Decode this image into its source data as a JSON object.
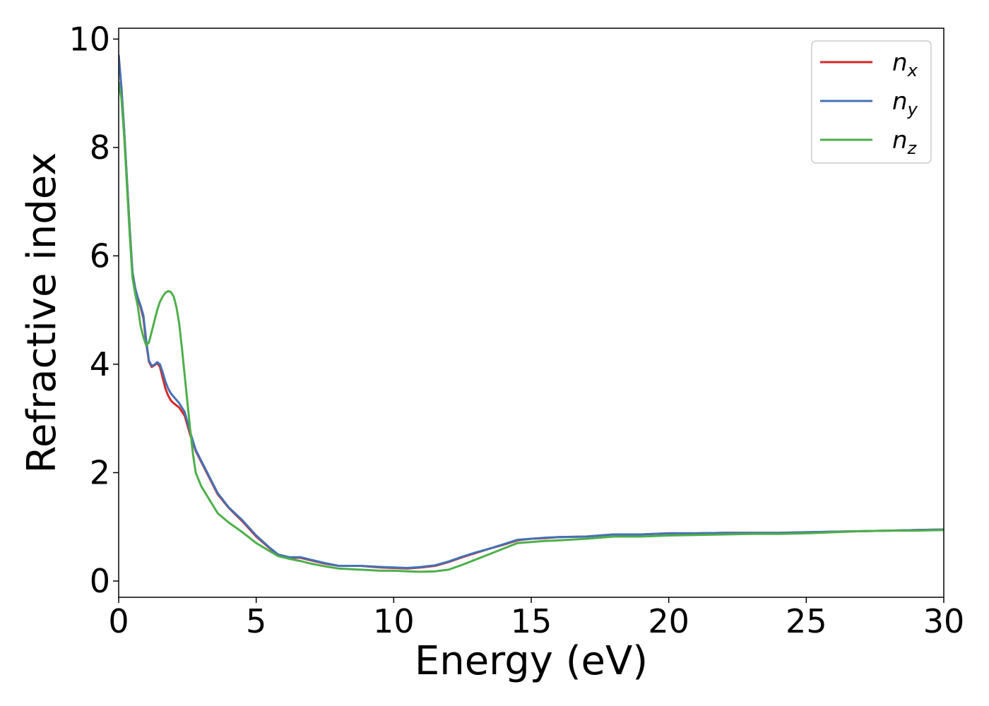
{
  "chart_data": {
    "type": "line",
    "xlabel": "Energy (eV)",
    "ylabel": "Refractive index",
    "xlim": [
      0,
      30
    ],
    "ylim": [
      -0.3,
      10.2
    ],
    "xticks": [
      0,
      5,
      10,
      15,
      20,
      25,
      30
    ],
    "yticks": [
      0,
      2,
      4,
      6,
      8,
      10
    ],
    "grid": false,
    "legend_position": "top-right",
    "series": [
      {
        "name": "n",
        "subscript": "x",
        "color": "#d62728",
        "x": [
          0,
          0.1,
          0.2,
          0.3,
          0.4,
          0.5,
          0.6,
          0.7,
          0.8,
          0.9,
          1.0,
          1.1,
          1.2,
          1.3,
          1.4,
          1.5,
          1.6,
          1.7,
          1.8,
          1.9,
          2.0,
          2.2,
          2.4,
          2.6,
          2.8,
          3.0,
          3.3,
          3.6,
          4.0,
          4.5,
          5.0,
          5.5,
          5.8,
          6.2,
          6.6,
          7.0,
          7.5,
          8.0,
          8.8,
          9.5,
          10.0,
          10.5,
          11.0,
          11.5,
          12.0,
          12.5,
          13.0,
          13.5,
          14.0,
          14.5,
          15.0,
          15.5,
          16.0,
          17.0,
          18.0,
          19.0,
          20.0,
          21.0,
          22.0,
          23.0,
          24.0,
          25.0,
          26.0,
          27.0,
          28.0,
          29.0,
          30.0
        ],
        "y": [
          9.7,
          9.1,
          8.3,
          7.4,
          6.5,
          5.7,
          5.4,
          5.2,
          5.05,
          4.85,
          4.4,
          4.05,
          3.95,
          3.98,
          4.02,
          3.95,
          3.75,
          3.55,
          3.42,
          3.33,
          3.28,
          3.2,
          3.05,
          2.7,
          2.4,
          2.2,
          1.9,
          1.6,
          1.35,
          1.1,
          0.82,
          0.6,
          0.48,
          0.43,
          0.43,
          0.38,
          0.32,
          0.28,
          0.28,
          0.25,
          0.24,
          0.23,
          0.25,
          0.28,
          0.35,
          0.44,
          0.52,
          0.6,
          0.67,
          0.75,
          0.78,
          0.79,
          0.81,
          0.82,
          0.86,
          0.86,
          0.88,
          0.88,
          0.89,
          0.89,
          0.89,
          0.9,
          0.91,
          0.92,
          0.93,
          0.94,
          0.95
        ]
      },
      {
        "name": "n",
        "subscript": "y",
        "color": "#4472b4",
        "x": [
          0,
          0.1,
          0.2,
          0.3,
          0.4,
          0.5,
          0.6,
          0.7,
          0.8,
          0.9,
          1.0,
          1.1,
          1.2,
          1.3,
          1.4,
          1.5,
          1.6,
          1.7,
          1.8,
          1.9,
          2.0,
          2.2,
          2.4,
          2.6,
          2.8,
          3.0,
          3.3,
          3.6,
          4.0,
          4.5,
          5.0,
          5.5,
          5.8,
          6.2,
          6.6,
          7.0,
          7.5,
          8.0,
          8.8,
          9.5,
          10.0,
          10.5,
          11.0,
          11.5,
          12.0,
          12.5,
          13.0,
          13.5,
          14.0,
          14.5,
          15.0,
          15.5,
          16.0,
          17.0,
          18.0,
          19.0,
          20.0,
          21.0,
          22.0,
          23.0,
          24.0,
          25.0,
          26.0,
          27.0,
          28.0,
          29.0,
          30.0
        ],
        "y": [
          9.7,
          9.1,
          8.3,
          7.4,
          6.5,
          5.7,
          5.4,
          5.22,
          5.08,
          4.9,
          4.45,
          4.07,
          3.97,
          3.99,
          4.04,
          4.0,
          3.85,
          3.68,
          3.55,
          3.46,
          3.4,
          3.28,
          3.12,
          2.75,
          2.42,
          2.22,
          1.92,
          1.62,
          1.36,
          1.12,
          0.84,
          0.61,
          0.49,
          0.44,
          0.44,
          0.39,
          0.33,
          0.28,
          0.28,
          0.26,
          0.25,
          0.24,
          0.26,
          0.29,
          0.36,
          0.45,
          0.53,
          0.6,
          0.68,
          0.76,
          0.78,
          0.8,
          0.81,
          0.82,
          0.86,
          0.86,
          0.88,
          0.88,
          0.89,
          0.89,
          0.89,
          0.9,
          0.91,
          0.92,
          0.93,
          0.94,
          0.95
        ]
      },
      {
        "name": "n",
        "subscript": "z",
        "color": "#4daf4a",
        "x": [
          0,
          0.1,
          0.2,
          0.3,
          0.4,
          0.5,
          0.6,
          0.7,
          0.8,
          0.9,
          1.0,
          1.1,
          1.2,
          1.3,
          1.4,
          1.5,
          1.6,
          1.7,
          1.8,
          1.9,
          2.0,
          2.1,
          2.2,
          2.3,
          2.4,
          2.5,
          2.6,
          2.7,
          2.8,
          3.0,
          3.3,
          3.6,
          4.0,
          4.5,
          5.0,
          5.5,
          5.8,
          6.2,
          6.6,
          7.0,
          7.5,
          8.0,
          8.8,
          9.5,
          10.0,
          10.5,
          11.0,
          11.5,
          12.0,
          12.5,
          13.0,
          13.5,
          14.0,
          14.5,
          15.0,
          15.5,
          16.0,
          17.0,
          18.0,
          19.0,
          20.0,
          21.0,
          22.0,
          23.0,
          24.0,
          25.0,
          26.0,
          27.0,
          28.0,
          29.0,
          30.0
        ],
        "y": [
          9.2,
          8.9,
          8.2,
          7.3,
          6.4,
          5.6,
          5.3,
          5.05,
          4.7,
          4.5,
          4.35,
          4.4,
          4.6,
          4.8,
          5.0,
          5.15,
          5.25,
          5.32,
          5.35,
          5.33,
          5.25,
          5.05,
          4.75,
          4.3,
          3.8,
          3.3,
          2.8,
          2.35,
          2.0,
          1.75,
          1.5,
          1.25,
          1.08,
          0.9,
          0.7,
          0.55,
          0.46,
          0.41,
          0.37,
          0.32,
          0.27,
          0.23,
          0.21,
          0.19,
          0.19,
          0.18,
          0.17,
          0.18,
          0.21,
          0.3,
          0.4,
          0.5,
          0.6,
          0.7,
          0.72,
          0.74,
          0.75,
          0.78,
          0.82,
          0.82,
          0.84,
          0.85,
          0.86,
          0.87,
          0.87,
          0.88,
          0.9,
          0.92,
          0.93,
          0.93,
          0.94
        ]
      }
    ]
  }
}
